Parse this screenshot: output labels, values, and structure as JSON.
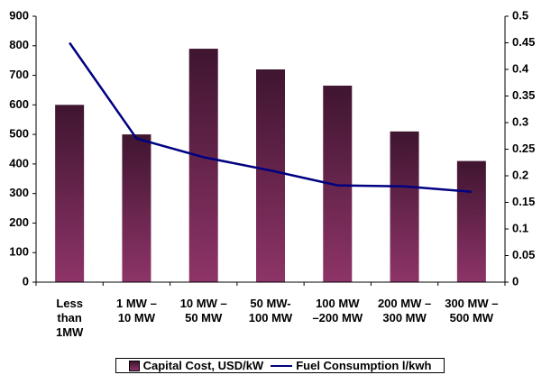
{
  "chart_data": {
    "type": "bar",
    "categories": [
      "Less\nthan\n1MW",
      "1 MW –\n10 MW",
      "10 MW –\n50 MW",
      "50 MW-\n100 MW",
      "100 MW\n–200 MW",
      "200 MW –\n300 MW",
      "300 MW –\n500 MW"
    ],
    "series": [
      {
        "name": "Capital Cost, USD/kW",
        "type": "bar",
        "color": "#8e3468",
        "values": [
          600,
          500,
          790,
          720,
          665,
          510,
          410
        ]
      },
      {
        "name": "Fuel Consumption l/kwh",
        "type": "line",
        "axis": "y2",
        "color": "#000080",
        "values": [
          0.45,
          0.27,
          0.235,
          0.21,
          0.182,
          0.18,
          0.17
        ]
      }
    ],
    "ylim": [
      0,
      900
    ],
    "yticks": [
      0,
      100,
      200,
      300,
      400,
      500,
      600,
      700,
      800,
      900
    ],
    "y2lim": [
      0,
      0.5
    ],
    "y2ticks": [
      0,
      0.05,
      0.1,
      0.15,
      0.2,
      0.25,
      0.3,
      0.35,
      0.4,
      0.45,
      0.5
    ],
    "legend": "bottom"
  }
}
